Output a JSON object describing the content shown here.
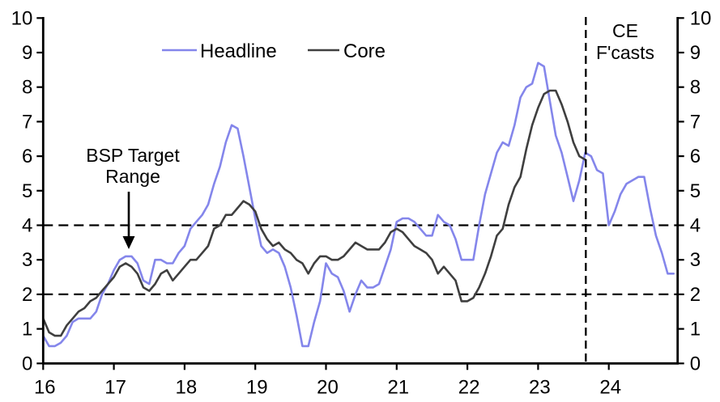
{
  "figure": {
    "legend": {
      "headline_label": "Headline",
      "core_label": "Core"
    },
    "annotations": {
      "target_line1": "BSP Target",
      "target_line2": "Range",
      "forecast_line1": "CE",
      "forecast_line2": "F'casts"
    },
    "colors": {
      "headline": "#8486EB",
      "core": "#3F3F3F",
      "axis": "#000000",
      "dashed": "#000000"
    }
  },
  "chart_data": {
    "type": "line",
    "title": "",
    "xlabel": "",
    "ylabel": "",
    "x_unit": "monthly, Jan 2016 - Dec 2024",
    "x_start": "2016-01",
    "x_end": "2024-12",
    "x_tick_labels": [
      "16",
      "17",
      "18",
      "19",
      "20",
      "21",
      "22",
      "23",
      "24"
    ],
    "y_tick_labels": [
      "0",
      "1",
      "2",
      "3",
      "4",
      "5",
      "6",
      "7",
      "8",
      "9",
      "10"
    ],
    "ylim": [
      0,
      10
    ],
    "dual_y_axis": true,
    "grid": false,
    "legend_position": "top-center",
    "target_band": {
      "lower": 2,
      "upper": 4,
      "style": "dashed",
      "label": "BSP Target Range"
    },
    "forecast": {
      "divider_month": "2023-10",
      "divider_style": "vertical-dashed",
      "label": "CE F'casts"
    },
    "series": [
      {
        "name": "Headline",
        "color": "#8486EB",
        "start": "2016-01",
        "values": [
          0.8,
          0.5,
          0.5,
          0.6,
          0.8,
          1.2,
          1.3,
          1.3,
          1.3,
          1.5,
          2.0,
          2.3,
          2.7,
          3.0,
          3.1,
          3.1,
          2.9,
          2.4,
          2.3,
          3.0,
          3.0,
          2.9,
          2.9,
          3.2,
          3.4,
          3.9,
          4.1,
          4.3,
          4.6,
          5.2,
          5.7,
          6.4,
          6.9,
          6.8,
          6.0,
          5.1,
          4.2,
          3.4,
          3.2,
          3.3,
          3.2,
          2.8,
          2.2,
          1.4,
          0.5,
          0.5,
          1.2,
          1.8,
          2.9,
          2.6,
          2.5,
          2.1,
          1.5,
          2.0,
          2.4,
          2.2,
          2.2,
          2.3,
          2.8,
          3.3,
          4.1,
          4.2,
          4.2,
          4.1,
          3.9,
          3.7,
          3.7,
          4.3,
          4.1,
          4.0,
          3.6,
          3.0,
          3.0,
          3.0,
          4.0,
          4.9,
          5.5,
          6.1,
          6.4,
          6.3,
          6.9,
          7.7,
          8.0,
          8.1,
          8.7,
          8.6,
          7.6,
          6.6,
          6.1,
          5.4,
          4.7,
          5.3,
          6.1,
          6.0,
          5.6,
          5.5,
          4.0,
          4.4,
          4.9,
          5.2,
          5.3,
          5.4,
          5.4,
          4.5,
          3.7,
          3.2,
          2.6,
          2.6
        ]
      },
      {
        "name": "Core",
        "color": "#3F3F3F",
        "start": "2016-01",
        "values": [
          1.3,
          0.9,
          0.8,
          0.8,
          1.1,
          1.3,
          1.5,
          1.6,
          1.8,
          1.9,
          2.1,
          2.3,
          2.5,
          2.8,
          2.9,
          2.8,
          2.6,
          2.2,
          2.1,
          2.3,
          2.6,
          2.7,
          2.4,
          2.6,
          2.8,
          3.0,
          3.0,
          3.2,
          3.4,
          3.9,
          4.0,
          4.3,
          4.3,
          4.5,
          4.7,
          4.6,
          4.4,
          3.9,
          3.6,
          3.4,
          3.5,
          3.3,
          3.2,
          3.0,
          2.9,
          2.6,
          2.9,
          3.1,
          3.1,
          3.0,
          3.0,
          3.1,
          3.3,
          3.5,
          3.4,
          3.3,
          3.3,
          3.3,
          3.5,
          3.8,
          3.9,
          3.8,
          3.6,
          3.4,
          3.3,
          3.2,
          3.0,
          2.6,
          2.8,
          2.6,
          2.4,
          1.8,
          1.8,
          1.9,
          2.2,
          2.6,
          3.1,
          3.7,
          3.9,
          4.6,
          5.1,
          5.4,
          6.2,
          6.9,
          7.4,
          7.8,
          7.9,
          7.9,
          7.5,
          7.0,
          6.4,
          6.0,
          5.9
        ]
      }
    ]
  }
}
